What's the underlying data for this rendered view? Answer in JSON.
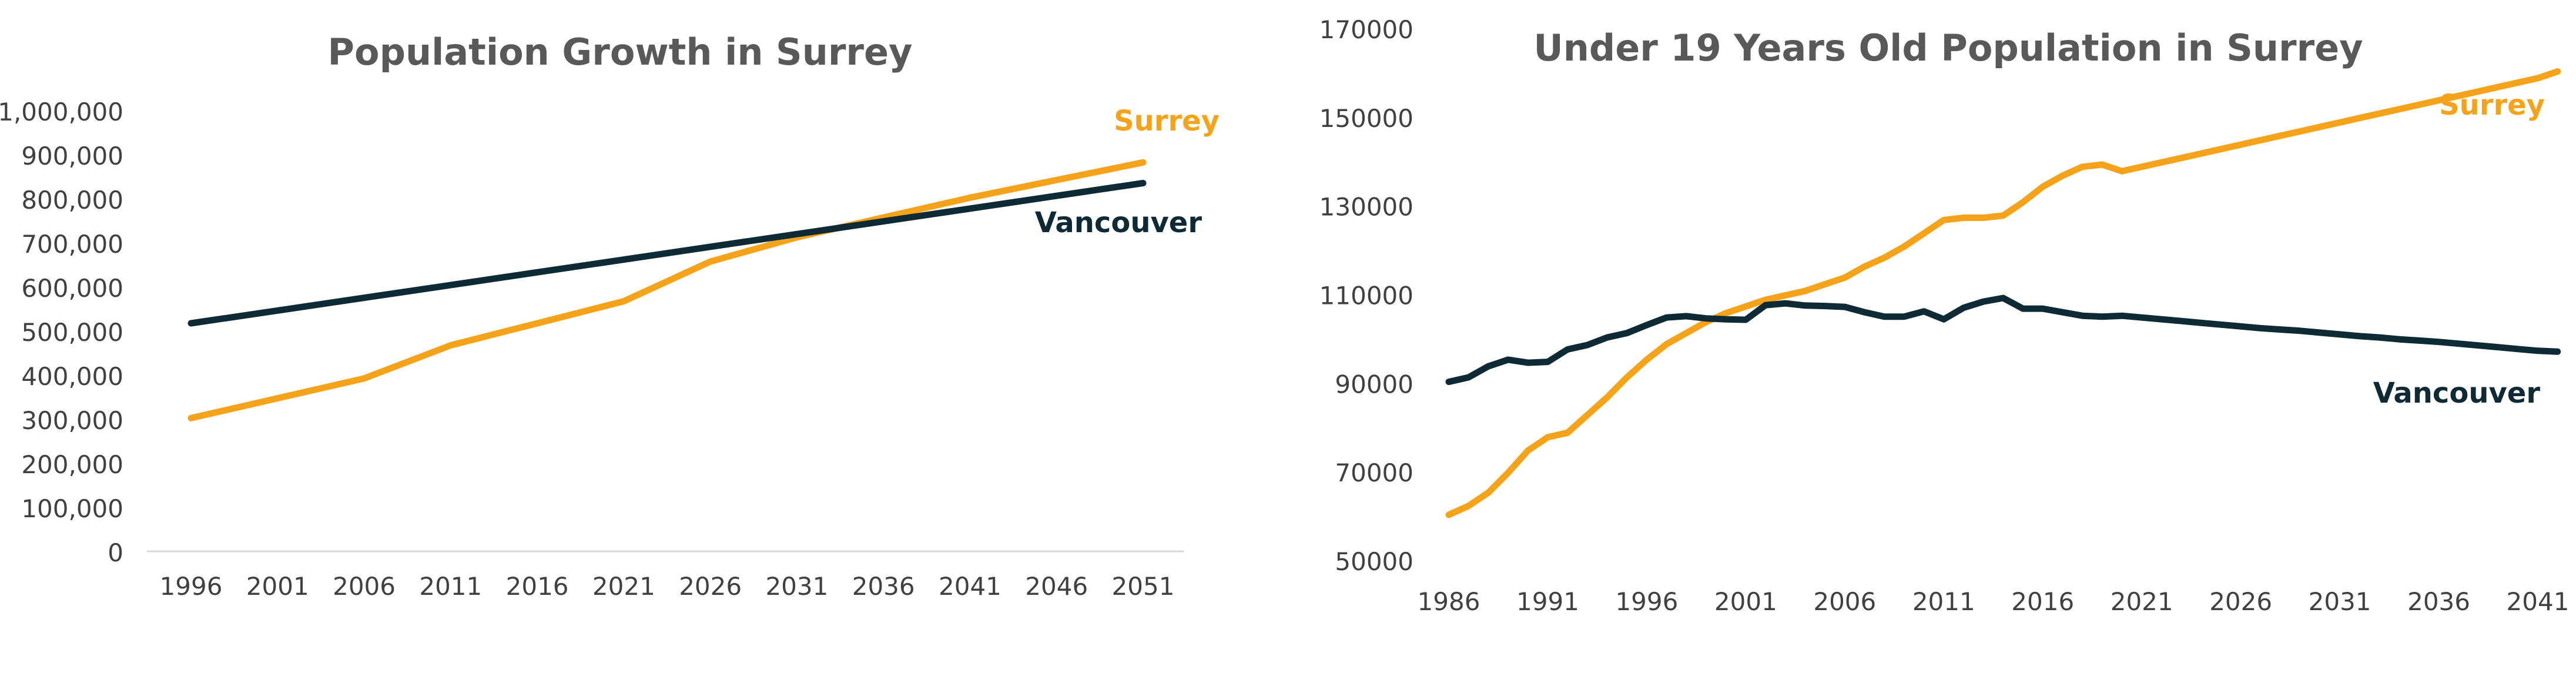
{
  "chart_data": [
    {
      "type": "line",
      "title": "Population Growth in Surrey",
      "xlabel": "",
      "ylabel": "",
      "x": [
        1996,
        2001,
        2006,
        2011,
        2016,
        2021,
        2026,
        2031,
        2036,
        2041,
        2046,
        2051
      ],
      "x_ticks": [
        "1996",
        "2001",
        "2006",
        "2011",
        "2016",
        "2021",
        "2026",
        "2031",
        "2036",
        "2041",
        "2046",
        "2051"
      ],
      "ylim": [
        0,
        1000000
      ],
      "y_ticks": [
        "0",
        "100,000",
        "200,000",
        "300,000",
        "400,000",
        "500,000",
        "600,000",
        "700,000",
        "800,000",
        "900,000",
        "1,000,000"
      ],
      "grid": false,
      "legend": "inline labels at line ends",
      "series": [
        {
          "name": "Surrey",
          "color": "#F5A31A",
          "x": [
            1996,
            2006,
            2011,
            2021,
            2026,
            2031,
            2041,
            2051
          ],
          "values": [
            305000,
            395000,
            470000,
            570000,
            660000,
            715000,
            805000,
            885000
          ]
        },
        {
          "name": "Vancouver",
          "color": "#0E2A35",
          "x": [
            1996,
            2051
          ],
          "values": [
            520000,
            838000
          ]
        }
      ]
    },
    {
      "type": "line",
      "title": "Under 19 Years Old Population in Surrey",
      "xlabel": "",
      "ylabel": "",
      "x_ticks": [
        "1986",
        "1991",
        "1996",
        "2001",
        "2006",
        "2011",
        "2016",
        "2021",
        "2026",
        "2031",
        "2036",
        "2041"
      ],
      "xlim": [
        1986,
        2041
      ],
      "ylim": [
        50000,
        170000
      ],
      "y_ticks": [
        "50000",
        "70000",
        "90000",
        "110000",
        "130000",
        "150000",
        "170000"
      ],
      "grid": false,
      "legend": "inline labels at right edge",
      "series": [
        {
          "name": "Surrey",
          "color": "#F5A31A",
          "x": [
            1986,
            1987,
            1988,
            1989,
            1990,
            1991,
            1992,
            1993,
            1994,
            1995,
            1996,
            1997,
            1998,
            1999,
            2000,
            2001,
            2002,
            2003,
            2004,
            2005,
            2006,
            2007,
            2008,
            2009,
            2010,
            2011,
            2012,
            2013,
            2014,
            2015,
            2016,
            2017,
            2018,
            2019,
            2020,
            2021,
            2022,
            2023,
            2024,
            2025,
            2026,
            2027,
            2028,
            2029,
            2030,
            2031,
            2032,
            2033,
            2034,
            2035,
            2036,
            2037,
            2038,
            2039,
            2040,
            2041,
            2042
          ],
          "values": [
            60500,
            62500,
            65500,
            70000,
            75000,
            78000,
            79000,
            83000,
            87000,
            91500,
            95500,
            99000,
            101500,
            104000,
            106000,
            107500,
            109000,
            110000,
            111000,
            112500,
            114000,
            116500,
            118500,
            121000,
            124000,
            127000,
            127500,
            127500,
            128000,
            131000,
            134500,
            137000,
            139000,
            139500,
            138000,
            139000,
            140000,
            141000,
            142000,
            143000,
            144000,
            145000,
            146000,
            147000,
            148000,
            149000,
            150000,
            151000,
            152000,
            153000,
            154000,
            155000,
            156000,
            157000,
            158000,
            159000,
            160500
          ]
        },
        {
          "name": "Vancouver",
          "color": "#0E2A35",
          "x": [
            1986,
            1987,
            1988,
            1989,
            1990,
            1991,
            1992,
            1993,
            1994,
            1995,
            1996,
            1997,
            1998,
            1999,
            2000,
            2001,
            2002,
            2003,
            2004,
            2005,
            2006,
            2007,
            2008,
            2009,
            2010,
            2011,
            2012,
            2013,
            2014,
            2015,
            2016,
            2017,
            2018,
            2019,
            2020,
            2021,
            2022,
            2023,
            2024,
            2025,
            2026,
            2027,
            2028,
            2029,
            2030,
            2031,
            2032,
            2033,
            2034,
            2035,
            2036,
            2037,
            2038,
            2039,
            2040,
            2041,
            2042
          ],
          "values": [
            90500,
            91500,
            94000,
            95500,
            94800,
            95000,
            97800,
            98800,
            100500,
            101500,
            103300,
            105000,
            105300,
            104800,
            104600,
            104500,
            107800,
            108200,
            107700,
            107600,
            107400,
            106200,
            105200,
            105200,
            106400,
            104600,
            107200,
            108600,
            109400,
            107000,
            107000,
            106200,
            105400,
            105200,
            105400,
            105000,
            104600,
            104200,
            103800,
            103400,
            103000,
            102600,
            102300,
            102000,
            101600,
            101200,
            100800,
            100500,
            100100,
            99800,
            99500,
            99100,
            98700,
            98300,
            97900,
            97500,
            97300
          ]
        }
      ]
    }
  ]
}
